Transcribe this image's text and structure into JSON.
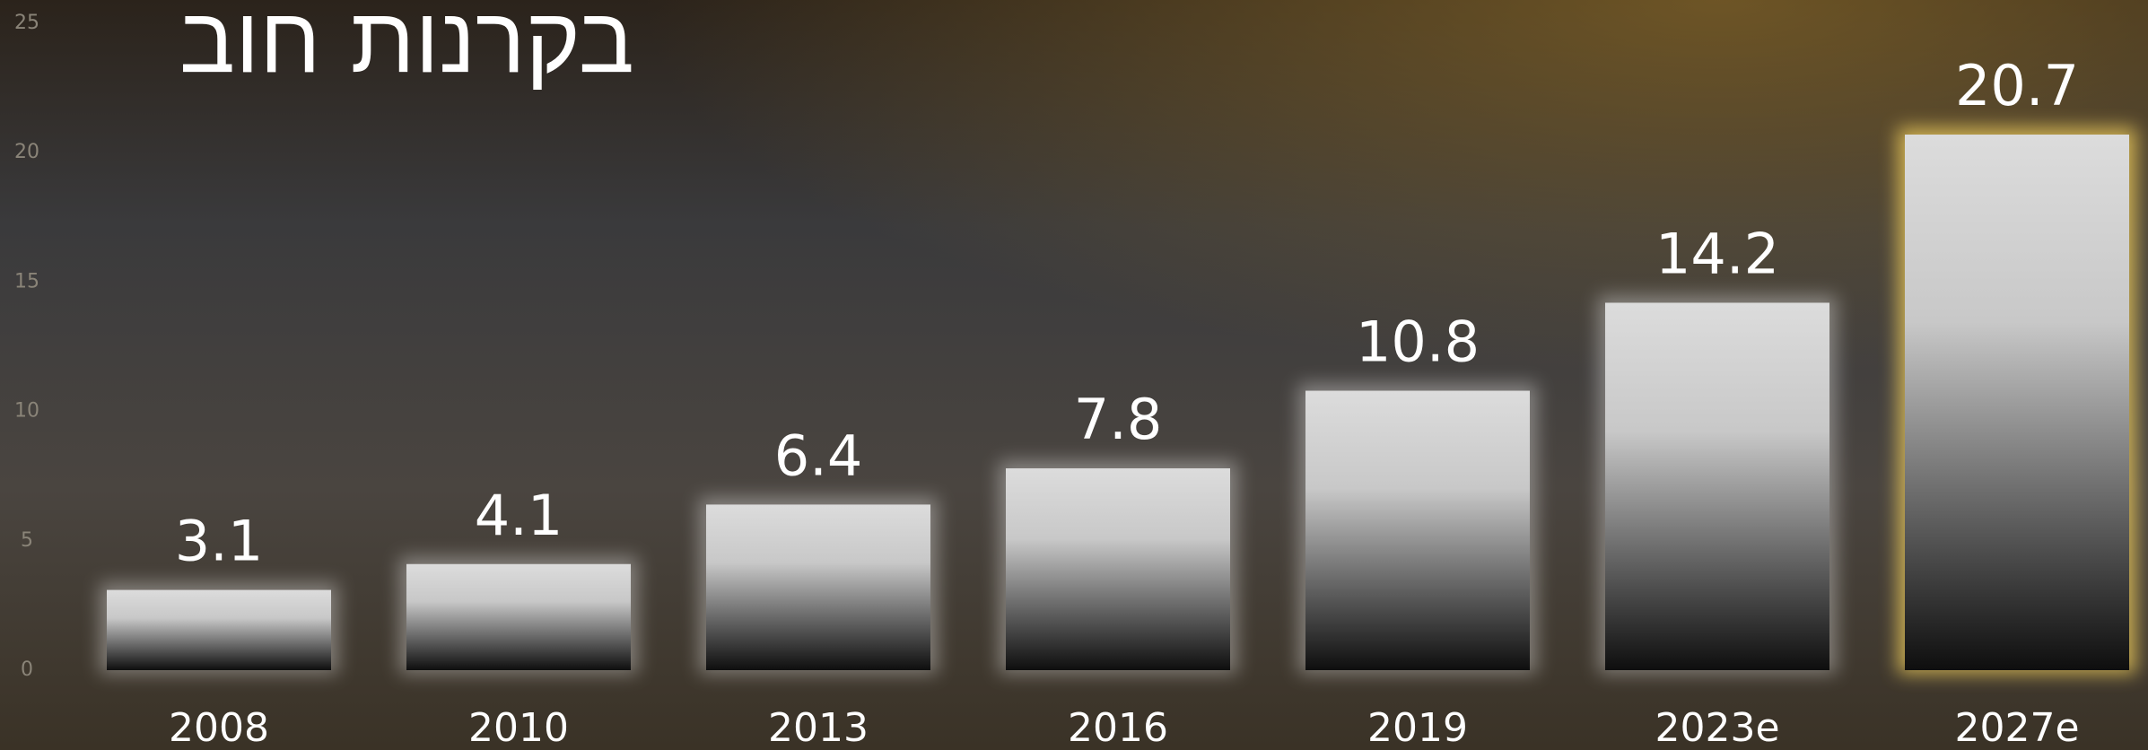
{
  "chart_data": {
    "type": "bar",
    "title": "בקרנות חוב",
    "categories": [
      "2008",
      "2010",
      "2013",
      "2016",
      "2019",
      "2023e",
      "2027e"
    ],
    "values": [
      3.1,
      4.1,
      6.4,
      7.8,
      10.8,
      14.2,
      20.7
    ],
    "edge_colors": [
      null,
      null,
      null,
      null,
      null,
      null,
      "#e9c85a"
    ],
    "ylim": [
      0,
      25
    ],
    "yticks": [
      0,
      5,
      10,
      15,
      20,
      25
    ],
    "grid": false
  }
}
